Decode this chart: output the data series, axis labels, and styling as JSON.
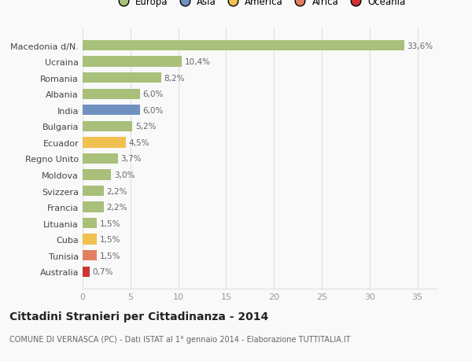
{
  "categories": [
    "Australia",
    "Tunisia",
    "Cuba",
    "Lituania",
    "Francia",
    "Svizzera",
    "Moldova",
    "Regno Unito",
    "Ecuador",
    "Bulgaria",
    "India",
    "Albania",
    "Romania",
    "Ucraina",
    "Macedonia d/N."
  ],
  "values": [
    0.7,
    1.5,
    1.5,
    1.5,
    2.2,
    2.2,
    3.0,
    3.7,
    4.5,
    5.2,
    6.0,
    6.0,
    8.2,
    10.4,
    33.6
  ],
  "labels": [
    "0,7%",
    "1,5%",
    "1,5%",
    "1,5%",
    "2,2%",
    "2,2%",
    "3,0%",
    "3,7%",
    "4,5%",
    "5,2%",
    "6,0%",
    "6,0%",
    "8,2%",
    "10,4%",
    "33,6%"
  ],
  "colors": [
    "#cc3333",
    "#e08060",
    "#f0c050",
    "#a8c07a",
    "#a8c07a",
    "#a8c07a",
    "#a8c07a",
    "#a8c07a",
    "#f0c050",
    "#a8c07a",
    "#7090c0",
    "#a8c07a",
    "#a8c07a",
    "#a8c07a",
    "#a8c07a"
  ],
  "legend_items": [
    {
      "label": "Europa",
      "color": "#a8c07a"
    },
    {
      "label": "Asia",
      "color": "#7090c0"
    },
    {
      "label": "America",
      "color": "#f0c050"
    },
    {
      "label": "Africa",
      "color": "#e08060"
    },
    {
      "label": "Oceania",
      "color": "#cc3333"
    }
  ],
  "title": "Cittadini Stranieri per Cittadinanza - 2014",
  "subtitle": "COMUNE DI VERNASCA (PC) - Dati ISTAT al 1° gennaio 2014 - Elaborazione TUTTITALIA.IT",
  "xlim": [
    0,
    37
  ],
  "xticks": [
    0,
    5,
    10,
    15,
    20,
    25,
    30,
    35
  ],
  "background_color": "#f9f9f9",
  "grid_color": "#e0e0e0",
  "label_color": "#666666",
  "tick_color": "#999999"
}
